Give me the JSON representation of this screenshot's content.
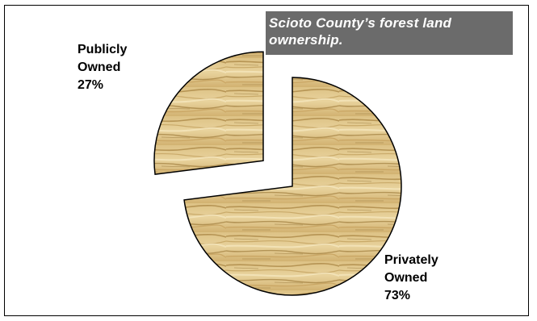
{
  "chart_data": {
    "type": "pie",
    "title": "Scioto County’s forest land ownership.",
    "slices": [
      {
        "label_line1": "Publicly",
        "label_line2": "Owned",
        "value_label": "27%",
        "value": 27,
        "exploded": true
      },
      {
        "label_line1": "Privately",
        "label_line2": "Owned",
        "value_label": "73%",
        "value": 73,
        "exploded": false
      }
    ],
    "fill": "wood-grain",
    "colors": {
      "wood_light": "#e9d49a",
      "wood_mid": "#c9a45c",
      "wood_dark": "#9a7636",
      "title_bg": "#6b6b6b",
      "title_text": "#ffffff"
    }
  }
}
